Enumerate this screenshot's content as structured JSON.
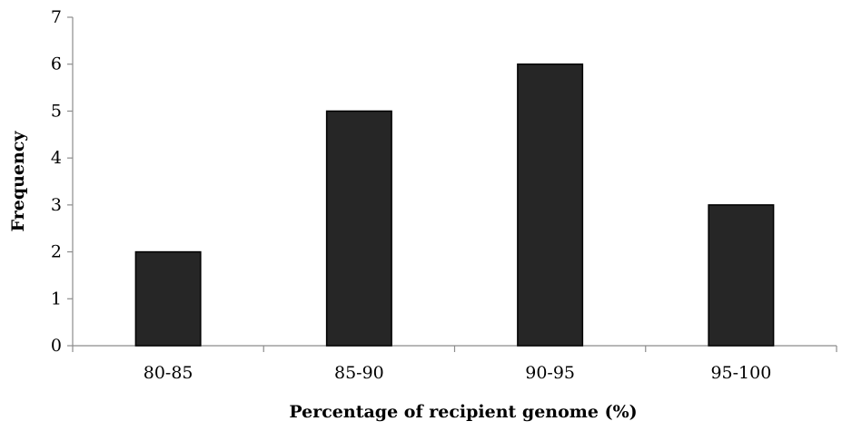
{
  "chart_data": {
    "type": "bar",
    "title": "",
    "xlabel": "Percentage of recipient genome (%)",
    "ylabel": "Frequency",
    "categories": [
      "80-85",
      "85-90",
      "90-95",
      "95-100"
    ],
    "values": [
      2,
      5,
      6,
      3
    ],
    "ylim": [
      0,
      7
    ],
    "yticks": [
      0,
      1,
      2,
      3,
      4,
      5,
      6,
      7
    ],
    "grid": false,
    "legend": "none",
    "bar_color": "#262626",
    "bar_edge_color": "#000000"
  }
}
